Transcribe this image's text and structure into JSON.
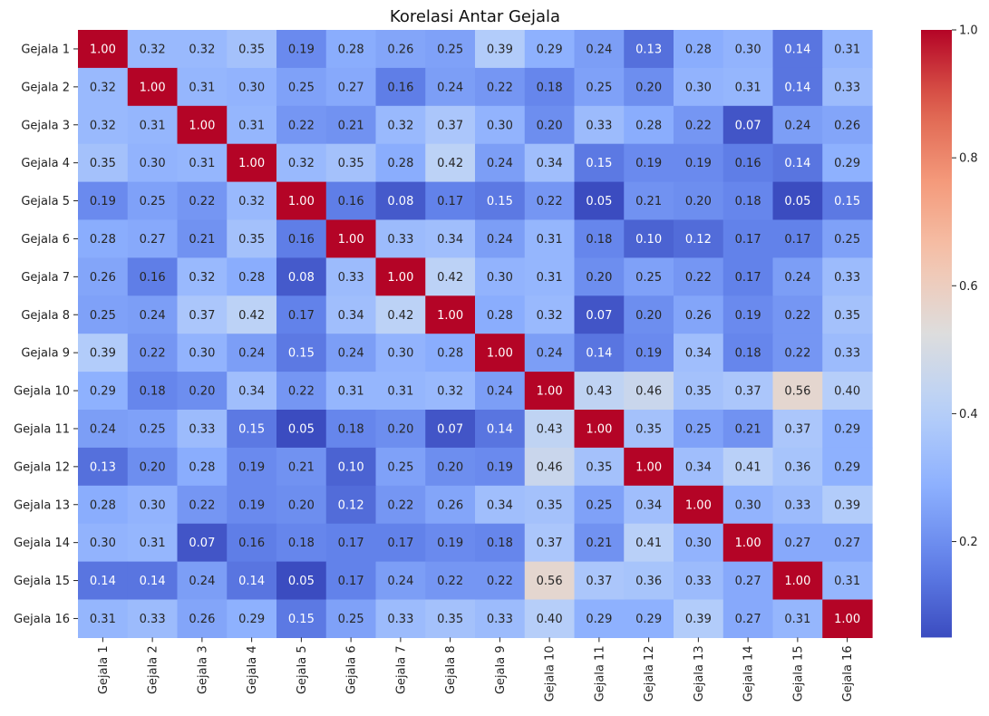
{
  "chart_data": {
    "type": "heatmap",
    "title": "Korelasi Antar Gejala",
    "xlabel": "",
    "ylabel": "",
    "colormap": "coolwarm",
    "value_format": "2 decimals",
    "rows": [
      "Gejala 1",
      "Gejala 2",
      "Gejala 3",
      "Gejala 4",
      "Gejala 5",
      "Gejala 6",
      "Gejala 7",
      "Gejala 8",
      "Gejala 9",
      "Gejala 10",
      "Gejala 11",
      "Gejala 12",
      "Gejala 13",
      "Gejala 14",
      "Gejala 15",
      "Gejala 16"
    ],
    "columns": [
      "Gejala 1",
      "Gejala 2",
      "Gejala 3",
      "Gejala 4",
      "Gejala 5",
      "Gejala 6",
      "Gejala 7",
      "Gejala 8",
      "Gejala 9",
      "Gejala 10",
      "Gejala 11",
      "Gejala 12",
      "Gejala 13",
      "Gejala 14",
      "Gejala 15",
      "Gejala 16"
    ],
    "values": [
      [
        1.0,
        0.32,
        0.32,
        0.35,
        0.19,
        0.28,
        0.26,
        0.25,
        0.39,
        0.29,
        0.24,
        0.13,
        0.28,
        0.3,
        0.14,
        0.31
      ],
      [
        0.32,
        1.0,
        0.31,
        0.3,
        0.25,
        0.27,
        0.16,
        0.24,
        0.22,
        0.18,
        0.25,
        0.2,
        0.3,
        0.31,
        0.14,
        0.33
      ],
      [
        0.32,
        0.31,
        1.0,
        0.31,
        0.22,
        0.21,
        0.32,
        0.37,
        0.3,
        0.2,
        0.33,
        0.28,
        0.22,
        0.07,
        0.24,
        0.26
      ],
      [
        0.35,
        0.3,
        0.31,
        1.0,
        0.32,
        0.35,
        0.28,
        0.42,
        0.24,
        0.34,
        0.15,
        0.19,
        0.19,
        0.16,
        0.14,
        0.29
      ],
      [
        0.19,
        0.25,
        0.22,
        0.32,
        1.0,
        0.16,
        0.08,
        0.17,
        0.15,
        0.22,
        0.05,
        0.21,
        0.2,
        0.18,
        0.05,
        0.15
      ],
      [
        0.28,
        0.27,
        0.21,
        0.35,
        0.16,
        1.0,
        0.33,
        0.34,
        0.24,
        0.31,
        0.18,
        0.1,
        0.12,
        0.17,
        0.17,
        0.25
      ],
      [
        0.26,
        0.16,
        0.32,
        0.28,
        0.08,
        0.33,
        1.0,
        0.42,
        0.3,
        0.31,
        0.2,
        0.25,
        0.22,
        0.17,
        0.24,
        0.33
      ],
      [
        0.25,
        0.24,
        0.37,
        0.42,
        0.17,
        0.34,
        0.42,
        1.0,
        0.28,
        0.32,
        0.07,
        0.2,
        0.26,
        0.19,
        0.22,
        0.35
      ],
      [
        0.39,
        0.22,
        0.3,
        0.24,
        0.15,
        0.24,
        0.3,
        0.28,
        1.0,
        0.24,
        0.14,
        0.19,
        0.34,
        0.18,
        0.22,
        0.33
      ],
      [
        0.29,
        0.18,
        0.2,
        0.34,
        0.22,
        0.31,
        0.31,
        0.32,
        0.24,
        1.0,
        0.43,
        0.46,
        0.35,
        0.37,
        0.56,
        0.4
      ],
      [
        0.24,
        0.25,
        0.33,
        0.15,
        0.05,
        0.18,
        0.2,
        0.07,
        0.14,
        0.43,
        1.0,
        0.35,
        0.25,
        0.21,
        0.37,
        0.29
      ],
      [
        0.13,
        0.2,
        0.28,
        0.19,
        0.21,
        0.1,
        0.25,
        0.2,
        0.19,
        0.46,
        0.35,
        1.0,
        0.34,
        0.41,
        0.36,
        0.29
      ],
      [
        0.28,
        0.3,
        0.22,
        0.19,
        0.2,
        0.12,
        0.22,
        0.26,
        0.34,
        0.35,
        0.25,
        0.34,
        1.0,
        0.3,
        0.33,
        0.39
      ],
      [
        0.3,
        0.31,
        0.07,
        0.16,
        0.18,
        0.17,
        0.17,
        0.19,
        0.18,
        0.37,
        0.21,
        0.41,
        0.3,
        1.0,
        0.27,
        0.27
      ],
      [
        0.14,
        0.14,
        0.24,
        0.14,
        0.05,
        0.17,
        0.24,
        0.22,
        0.22,
        0.56,
        0.37,
        0.36,
        0.33,
        0.27,
        1.0,
        0.31
      ],
      [
        0.31,
        0.33,
        0.26,
        0.29,
        0.15,
        0.25,
        0.33,
        0.35,
        0.33,
        0.4,
        0.29,
        0.29,
        0.39,
        0.27,
        0.31,
        1.0
      ]
    ],
    "vmin": 0.05,
    "vmax": 1.0,
    "colorbar": {
      "ticks": [
        0.2,
        0.4,
        0.6,
        0.8,
        1.0
      ],
      "tick_labels": [
        "0.2",
        "0.4",
        "0.6",
        "0.8",
        "1.0"
      ]
    },
    "grid": false,
    "legend": "colorbar-right"
  }
}
